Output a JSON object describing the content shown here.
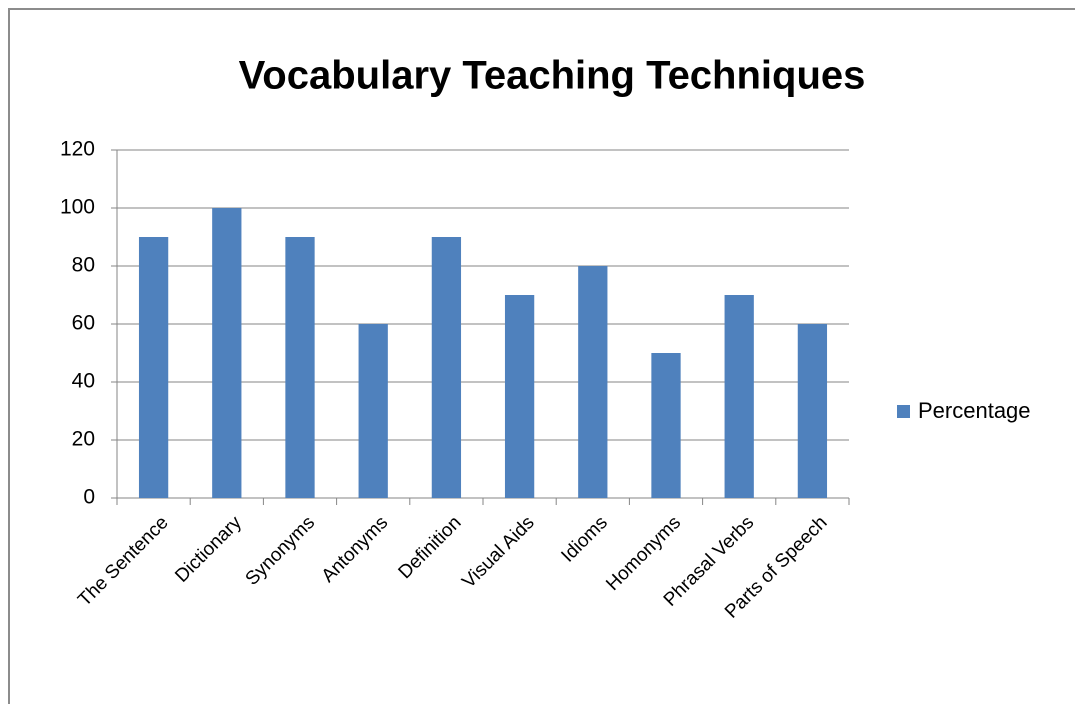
{
  "chart_data": {
    "type": "bar",
    "title": "Vocabulary Teaching Techniques",
    "categories": [
      "The Sentence",
      "Dictionary",
      "Synonyms",
      "Antonyms",
      "Definition",
      "Visual Aids",
      "Idioms",
      "Homonyms",
      "Phrasal Verbs",
      "Parts of Speech"
    ],
    "series": [
      {
        "name": "Percentage",
        "color": "#4f81bd",
        "values": [
          90,
          100,
          90,
          60,
          90,
          70,
          80,
          50,
          70,
          60
        ]
      }
    ],
    "ylim": [
      0,
      120
    ],
    "yticks": [
      0,
      20,
      40,
      60,
      80,
      100,
      120
    ],
    "grid": true,
    "legend": "right"
  }
}
